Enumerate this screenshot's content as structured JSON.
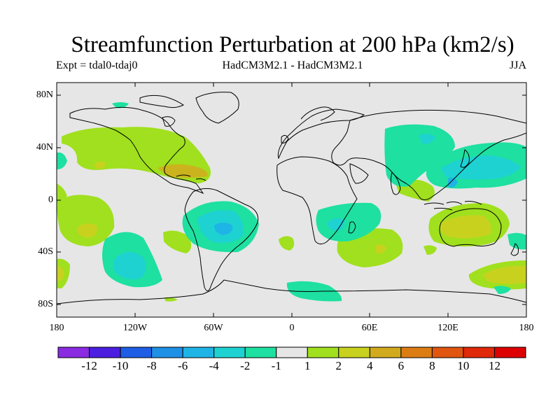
{
  "title": "Streamfunction Perturbation at 200 hPa (km2/s)",
  "subtitle": {
    "expt": "Expt = tdal0-tdaj0",
    "model": "HadCM3M2.1 - HadCM3M2.1",
    "season": "JJA"
  },
  "axes": {
    "y_ticks": [
      "80N",
      "40N",
      "0",
      "40S",
      "80S"
    ],
    "x_ticks": [
      "180",
      "120W",
      "60W",
      "0",
      "60E",
      "120E",
      "180"
    ]
  },
  "colorbar": {
    "labels": [
      "-12",
      "-10",
      "-8",
      "-6",
      "-4",
      "-2",
      "-1",
      "1",
      "2",
      "4",
      "6",
      "8",
      "10",
      "12"
    ],
    "colors": [
      "#8a2be2",
      "#4b1ee0",
      "#1e5ee6",
      "#1e90e6",
      "#1eb4e6",
      "#1ed2d2",
      "#1ee0a0",
      "#e6e6e6",
      "#a0e01e",
      "#c8d21e",
      "#d2aa1e",
      "#dc7d14",
      "#e0550f",
      "#e0280a",
      "#dc0000"
    ]
  },
  "colors": {
    "background": "#e6e6e6",
    "coast": "#000000"
  }
}
